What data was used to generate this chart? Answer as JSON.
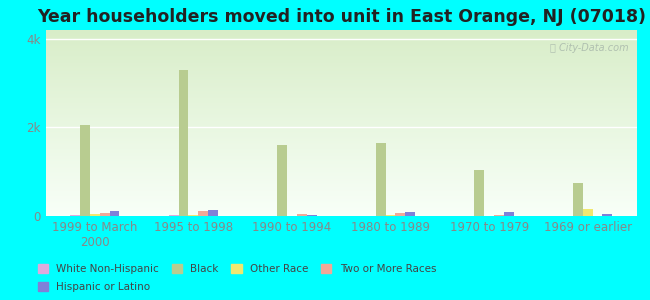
{
  "title": "Year householders moved into unit in East Orange, NJ (07018)",
  "background_color": "#00FFFF",
  "plot_bg_gradient_top": "#d8edc8",
  "plot_bg_gradient_bottom": "#f8fff8",
  "categories": [
    "1999 to March\n2000",
    "1995 to 1998",
    "1990 to 1994",
    "1980 to 1989",
    "1970 to 1979",
    "1969 or earlier"
  ],
  "series": {
    "White Non-Hispanic": {
      "values": [
        20,
        20,
        10,
        10,
        10,
        5
      ],
      "color": "#ddaadd"
    },
    "Black": {
      "values": [
        2050,
        3300,
        1600,
        1650,
        1050,
        750
      ],
      "color": "#b8cc90"
    },
    "Other Race": {
      "values": [
        55,
        25,
        10,
        15,
        10,
        150
      ],
      "color": "#f0e870"
    },
    "Two or More Races": {
      "values": [
        70,
        110,
        55,
        65,
        15,
        10
      ],
      "color": "#f0a898"
    },
    "Hispanic or Latino": {
      "values": [
        120,
        140,
        15,
        100,
        90,
        50
      ],
      "color": "#8080d8"
    }
  },
  "ylim": [
    0,
    4200
  ],
  "yticks": [
    0,
    2000,
    4000
  ],
  "ytick_labels": [
    "0",
    "2k",
    "4k"
  ],
  "bar_width": 0.1,
  "title_fontsize": 12.5,
  "axis_label_fontsize": 8.5,
  "legend_fontsize": 7.5,
  "legend_row1": [
    "White Non-Hispanic",
    "Black",
    "Other Race",
    "Two or More Races"
  ],
  "legend_row2": [
    "Hispanic or Latino"
  ]
}
